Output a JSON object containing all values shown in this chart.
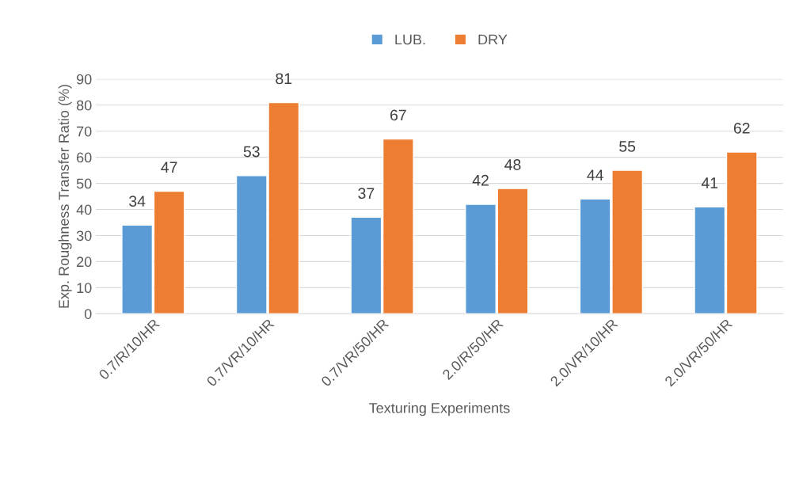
{
  "chart_data": {
    "type": "bar",
    "categories": [
      "0.7/R/10/HR",
      "0.7/VR/10/HR",
      "0.7/VR/50/HR",
      "2.0/R/50/HR",
      "2.0/VR/10/HR",
      "2.0/VR/50/HR"
    ],
    "series": [
      {
        "name": "LUB.",
        "color": "#5b9bd5",
        "values": [
          34,
          53,
          37,
          42,
          44,
          41
        ]
      },
      {
        "name": "DRY",
        "color": "#ed7d31",
        "values": [
          47,
          81,
          67,
          48,
          55,
          62
        ]
      }
    ],
    "xlabel": "Texturing Experiments",
    "ylabel": "Exp. Roughness Transfer Ratio (%)",
    "ylim": [
      0,
      90
    ],
    "yticks": [
      0,
      10,
      20,
      30,
      40,
      50,
      60,
      70,
      80,
      90
    ],
    "grid": "y",
    "legend": "top",
    "data_labels": true
  }
}
